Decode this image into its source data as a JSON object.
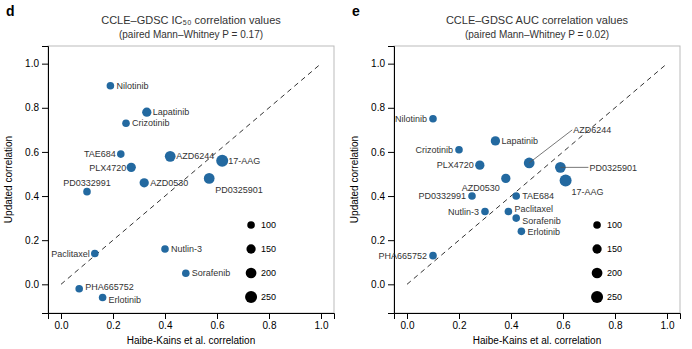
{
  "chart_data": [
    {
      "type": "scatter",
      "title": "CCLE–GDSC IC₅₀ correlation values",
      "subtitle": "(paired Mann–Whitney P = 0.17)",
      "annotations": [
        "d"
      ],
      "xlabel": "Haibe-Kains et al. correlation",
      "ylabel": "Updated correlation",
      "labels": [
        "Nilotinib",
        "Lapatinib",
        "Crizotinib",
        "TAE684",
        "AZD6244",
        "17-AAG",
        "PLX4720",
        "AZD0530",
        "PD0325901",
        "PD0332991",
        "Nutlin-3",
        "Paclitaxel",
        "Sorafenib",
        "PHA665752",
        "Erlotinib"
      ],
      "x": [
        0.19,
        0.33,
        0.25,
        0.23,
        0.42,
        0.62,
        0.27,
        0.32,
        0.57,
        0.1,
        0.4,
        0.13,
        0.48,
        0.07,
        0.16
      ],
      "values": [
        0.9,
        0.78,
        0.73,
        0.59,
        0.58,
        0.56,
        0.53,
        0.46,
        0.48,
        0.42,
        0.16,
        0.14,
        0.05,
        -0.02,
        -0.06
      ],
      "sizes": [
        100,
        150,
        100,
        100,
        200,
        250,
        150,
        150,
        200,
        100,
        100,
        100,
        100,
        100,
        100
      ],
      "color": "#2369a0",
      "reference_line": {
        "x": [
          0,
          1
        ],
        "values": [
          0,
          1
        ]
      },
      "size_legend": [
        100,
        150,
        200,
        250
      ],
      "legend": "lower right",
      "xlim": [
        -0.05,
        1.05
      ],
      "ylim": [
        -0.13,
        1.08
      ],
      "xticks": [
        {
          "value": 0.0,
          "label": "0.0"
        },
        0.2,
        0.4,
        0.6,
        0.8,
        {
          "value": 1.0,
          "label": "1.0"
        }
      ],
      "yticks": [
        {
          "value": 0.0,
          "label": "0.0"
        },
        0.2,
        0.4,
        0.6,
        0.8,
        {
          "value": 1.0,
          "label": "1.0"
        }
      ],
      "grid": false
    },
    {
      "type": "scatter",
      "title": "CCLE–GDSC AUC correlation values",
      "subtitle": "(paired Mann–Whitney P = 0.02)",
      "annotations": [
        "e"
      ],
      "xlabel": "Haibe-Kains et al. correlation",
      "ylabel": "Updated correlation",
      "labels": [
        "Nilotinib",
        "Lapatinib",
        "Crizotinib",
        "AZD6244",
        "PLX4720",
        "AZD0530",
        "PD0325901",
        "17-AAG",
        "PD0332991",
        "TAE684",
        "Paclitaxel",
        "Nutlin-3",
        "Sorafenib",
        "Erlotinib",
        "PHA665752"
      ],
      "x": [
        0.1,
        0.34,
        0.2,
        0.47,
        0.28,
        0.38,
        0.59,
        0.61,
        0.25,
        0.42,
        0.39,
        0.3,
        0.42,
        0.44,
        0.1
      ],
      "values": [
        0.75,
        0.65,
        0.61,
        0.55,
        0.54,
        0.48,
        0.53,
        0.47,
        0.4,
        0.4,
        0.33,
        0.33,
        0.3,
        0.24,
        0.13
      ],
      "sizes": [
        100,
        150,
        100,
        200,
        150,
        150,
        200,
        250,
        100,
        100,
        100,
        100,
        100,
        100,
        100
      ],
      "color": "#2369a0",
      "reference_line": {
        "x": [
          0,
          1
        ],
        "values": [
          0,
          1
        ]
      },
      "size_legend": [
        100,
        150,
        200,
        250
      ],
      "legend": "lower right",
      "xlim": [
        -0.05,
        1.05
      ],
      "ylim": [
        -0.13,
        1.08
      ],
      "xticks": [
        {
          "value": 0.0,
          "label": "0.0"
        },
        0.2,
        0.4,
        0.6,
        0.8,
        {
          "value": 1.0,
          "label": "1.0"
        }
      ],
      "yticks": [
        {
          "value": 0.0,
          "label": "0.0"
        },
        0.2,
        0.4,
        0.6,
        0.8,
        {
          "value": 1.0,
          "label": "1.0"
        }
      ],
      "grid": false
    }
  ]
}
